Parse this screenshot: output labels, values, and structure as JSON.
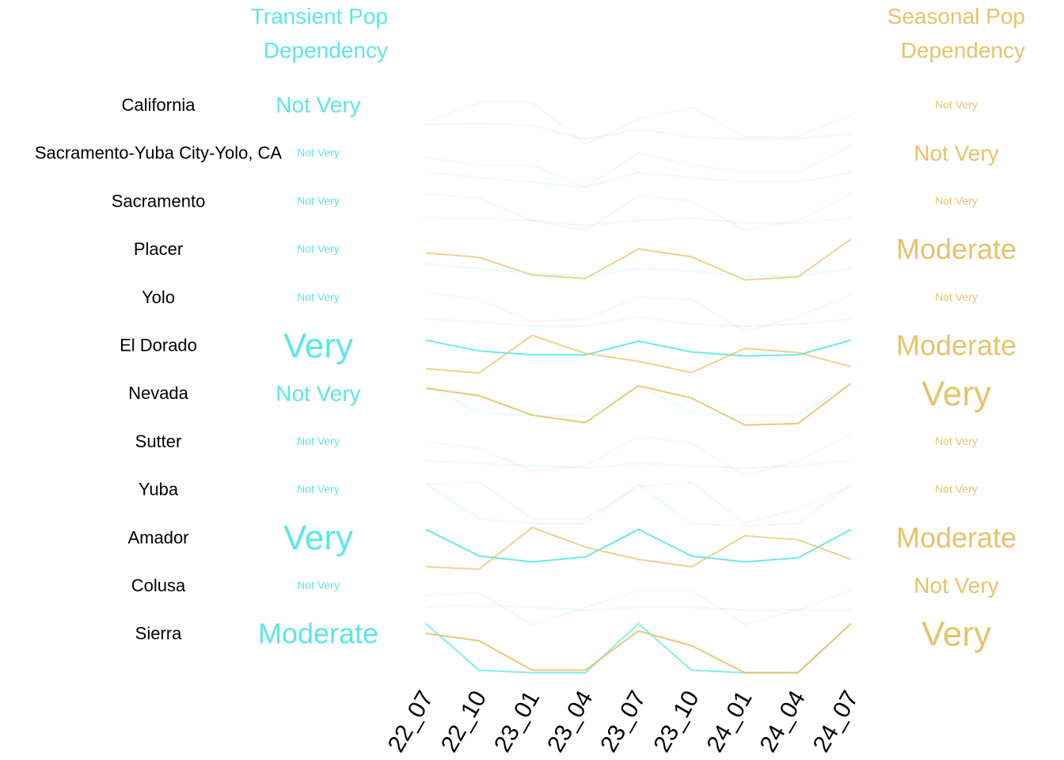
{
  "chart_data": {
    "type": "line",
    "headers": {
      "transient": [
        "Transient Pop",
        "Dependency"
      ],
      "seasonal": [
        "Seasonal Pop",
        "Dependency"
      ]
    },
    "colors": {
      "transient": "#5ce6e6",
      "seasonal": "#e6c36a",
      "label": "#000000"
    },
    "x": [
      "22_07",
      "22_10",
      "23_01",
      "23_04",
      "23_07",
      "23_10",
      "24_01",
      "24_04",
      "24_07"
    ],
    "rows": [
      {
        "region": "California",
        "transient": {
          "level": "Not Very",
          "values": [
            0.4,
            0.42,
            0.38,
            0.1,
            0.3,
            0.15,
            0.1,
            0.12,
            0.2
          ]
        },
        "seasonal": {
          "level": "Not Very",
          "values": [
            0.45,
            0.85,
            0.85,
            0.0,
            0.5,
            0.75,
            0.15,
            0.15,
            0.6
          ]
        }
      },
      {
        "region": "Sacramento-Yuba City-Yolo, CA",
        "transient": {
          "level": "Not Very",
          "values": [
            0.4,
            0.3,
            0.2,
            0.1,
            0.4,
            0.3,
            0.2,
            0.2,
            0.4
          ]
        },
        "seasonal": {
          "level": "Not Very",
          "values": [
            0.7,
            0.55,
            0.55,
            0.1,
            0.8,
            0.55,
            0.4,
            0.4,
            0.95
          ]
        }
      },
      {
        "region": "Sacramento",
        "transient": {
          "level": "Not Very",
          "values": [
            0.45,
            0.45,
            0.4,
            0.3,
            0.4,
            0.45,
            0.35,
            0.35,
            0.45
          ]
        },
        "seasonal": {
          "level": "Not Very",
          "values": [
            0.95,
            0.85,
            0.4,
            0.2,
            0.9,
            0.8,
            0.2,
            0.4,
            0.95
          ]
        }
      },
      {
        "region": "Placer",
        "transient": {
          "level": "Not Very",
          "values": [
            0.5,
            0.4,
            0.3,
            0.25,
            0.4,
            0.35,
            0.25,
            0.25,
            0.4
          ]
        },
        "seasonal": {
          "level": "Moderate",
          "values": [
            0.72,
            0.63,
            0.27,
            0.2,
            0.8,
            0.64,
            0.17,
            0.23,
            1.0
          ]
        }
      },
      {
        "region": "Yolo",
        "transient": {
          "level": "Not Very",
          "values": [
            0.35,
            0.3,
            0.2,
            0.2,
            0.4,
            0.25,
            0.2,
            0.25,
            0.35
          ]
        },
        "seasonal": {
          "level": "Not Very",
          "values": [
            0.9,
            0.75,
            0.3,
            0.35,
            0.8,
            0.75,
            0.1,
            0.4,
            0.85
          ]
        }
      },
      {
        "region": "El Dorado",
        "transient": {
          "level": "Very",
          "values": [
            0.9,
            0.68,
            0.6,
            0.6,
            0.88,
            0.66,
            0.58,
            0.6,
            0.9
          ]
        },
        "seasonal": {
          "level": "Moderate",
          "values": [
            0.32,
            0.23,
            1.0,
            0.63,
            0.47,
            0.24,
            0.73,
            0.65,
            0.36
          ]
        }
      },
      {
        "region": "Nevada",
        "transient": {
          "level": "Not Very",
          "values": [
            0.97,
            0.4,
            0.35,
            0.33,
            0.95,
            0.4,
            0.35,
            0.35,
            1.0
          ]
        },
        "seasonal": {
          "level": "Very",
          "values": [
            0.9,
            0.75,
            0.35,
            0.2,
            0.95,
            0.7,
            0.15,
            0.18,
            1.0
          ]
        }
      },
      {
        "region": "Sutter",
        "transient": {
          "level": "Not Very",
          "values": [
            0.4,
            0.35,
            0.3,
            0.25,
            0.35,
            0.3,
            0.25,
            0.3,
            0.4
          ]
        },
        "seasonal": {
          "level": "Not Very",
          "values": [
            0.8,
            0.65,
            0.2,
            0.3,
            0.9,
            0.75,
            0.1,
            0.4,
            0.95
          ]
        }
      },
      {
        "region": "Yuba",
        "transient": {
          "level": "Not Very",
          "values": [
            0.9,
            0.2,
            0.1,
            0.1,
            0.9,
            0.1,
            0.05,
            0.1,
            0.9
          ]
        },
        "seasonal": {
          "level": "Not Very",
          "values": [
            0.9,
            0.95,
            0.2,
            0.2,
            0.85,
            0.95,
            0.1,
            0.4,
            0.85
          ]
        }
      },
      {
        "region": "Amador",
        "transient": {
          "level": "Very",
          "values": [
            0.96,
            0.42,
            0.3,
            0.4,
            0.96,
            0.42,
            0.3,
            0.38,
            0.96
          ]
        },
        "seasonal": {
          "level": "Moderate",
          "values": [
            0.2,
            0.15,
            1.0,
            0.6,
            0.35,
            0.2,
            0.83,
            0.75,
            0.35
          ]
        }
      },
      {
        "region": "Colusa",
        "transient": {
          "level": "Not Very",
          "values": [
            0.35,
            0.4,
            0.35,
            0.3,
            0.35,
            0.35,
            0.3,
            0.3,
            0.3
          ]
        },
        "seasonal": {
          "level": "Not Very",
          "values": [
            0.6,
            0.65,
            0.0,
            0.35,
            0.7,
            0.7,
            0.0,
            0.3,
            0.7
          ]
        }
      },
      {
        "region": "Sierra",
        "transient": {
          "level": "Moderate",
          "values": [
            1.0,
            0.05,
            0.0,
            0.0,
            1.0,
            0.05,
            0.0,
            0.0,
            1.0
          ]
        },
        "seasonal": {
          "level": "Very",
          "values": [
            0.8,
            0.65,
            0.05,
            0.05,
            0.85,
            0.55,
            0.0,
            0.0,
            1.0
          ]
        }
      }
    ]
  }
}
